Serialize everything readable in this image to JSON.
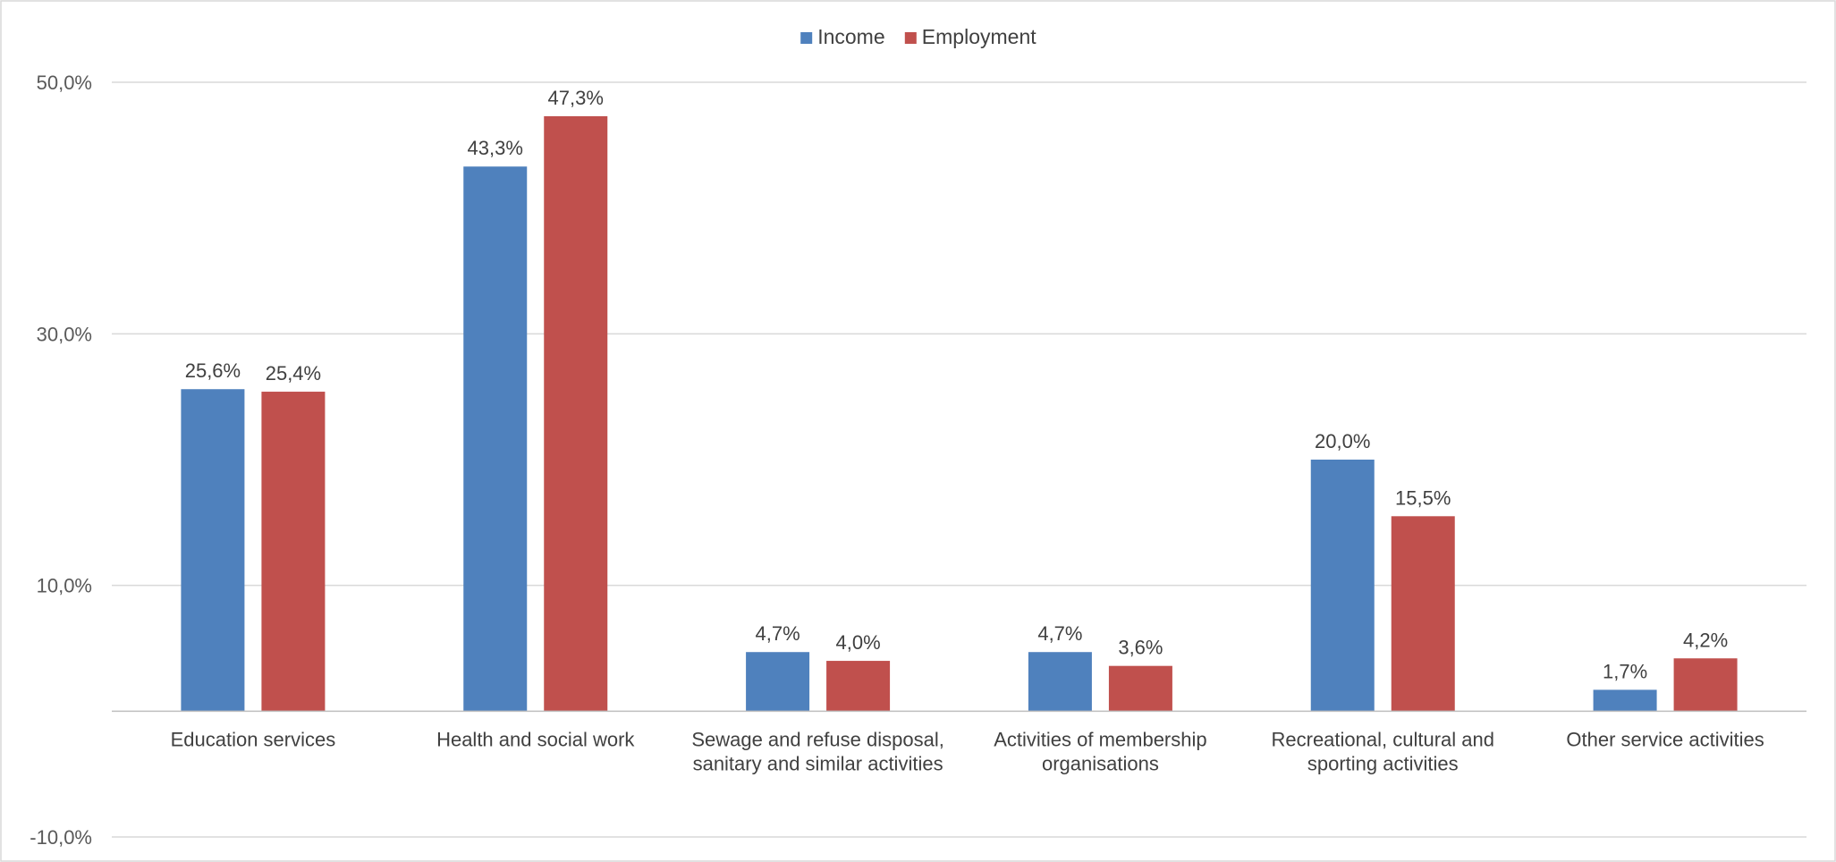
{
  "chart_data": {
    "type": "bar",
    "categories": [
      [
        "Education services"
      ],
      [
        "Health and social work"
      ],
      [
        "Sewage and refuse disposal,",
        "sanitary and similar activities"
      ],
      [
        "Activities of membership",
        "organisations"
      ],
      [
        "Recreational, cultural and",
        "sporting activities"
      ],
      [
        "Other service activities"
      ]
    ],
    "series": [
      {
        "name": "Income",
        "color": "#4f81bd",
        "values": [
          25.6,
          43.3,
          4.7,
          4.7,
          20.0,
          1.7
        ],
        "labels": [
          "25,6%",
          "43,3%",
          "4,7%",
          "4,7%",
          "20,0%",
          "1,7%"
        ]
      },
      {
        "name": "Employment",
        "color": "#c0504d",
        "values": [
          25.4,
          47.3,
          4.0,
          3.6,
          15.5,
          4.2
        ],
        "labels": [
          "25,4%",
          "47,3%",
          "4,0%",
          "3,6%",
          "15,5%",
          "4,2%"
        ]
      }
    ],
    "y_ticks": [
      {
        "value": 50,
        "label": "50,0%"
      },
      {
        "value": 30,
        "label": "30,0%"
      },
      {
        "value": 10,
        "label": "10,0%"
      },
      {
        "value": -10,
        "label": "-10,0%"
      }
    ],
    "ylim": [
      -10,
      50
    ],
    "y_baseline": 0,
    "grid": true,
    "legend_position": "top-center"
  }
}
